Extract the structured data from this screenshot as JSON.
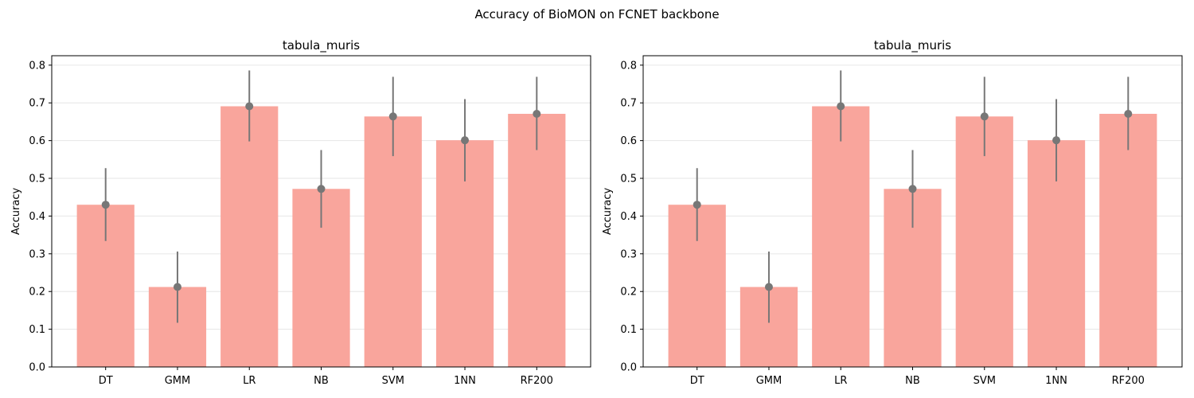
{
  "figure": {
    "suptitle": "Accuracy of BioMON on FCNET backbone"
  },
  "colors": {
    "bar": "#f9a59c",
    "error": "#777777",
    "grid": "#e6e6e6",
    "axis": "#000000"
  },
  "chart_data": [
    {
      "type": "bar",
      "title": "tabula_muris",
      "xlabel": "",
      "ylabel": "Accuracy",
      "categories": [
        "DT",
        "GMM",
        "LR",
        "NB",
        "SVM",
        "1NN",
        "RF200"
      ],
      "values": [
        0.43,
        0.212,
        0.691,
        0.472,
        0.664,
        0.601,
        0.671
      ],
      "error_low": [
        0.334,
        0.117,
        0.598,
        0.369,
        0.559,
        0.492,
        0.575
      ],
      "error_high": [
        0.527,
        0.306,
        0.786,
        0.575,
        0.769,
        0.71,
        0.769
      ],
      "ylim": [
        0,
        0.825
      ],
      "yticks": [
        "0.0",
        "0.1",
        "0.2",
        "0.3",
        "0.4",
        "0.5",
        "0.6",
        "0.7",
        "0.8"
      ],
      "grid": "y"
    },
    {
      "type": "bar",
      "title": "tabula_muris",
      "xlabel": "",
      "ylabel": "Accuracy",
      "categories": [
        "DT",
        "GMM",
        "LR",
        "NB",
        "SVM",
        "1NN",
        "RF200"
      ],
      "values": [
        0.43,
        0.212,
        0.691,
        0.472,
        0.664,
        0.601,
        0.671
      ],
      "error_low": [
        0.334,
        0.117,
        0.598,
        0.369,
        0.559,
        0.492,
        0.575
      ],
      "error_high": [
        0.527,
        0.306,
        0.786,
        0.575,
        0.769,
        0.71,
        0.769
      ],
      "ylim": [
        0,
        0.825
      ],
      "yticks": [
        "0.0",
        "0.1",
        "0.2",
        "0.3",
        "0.4",
        "0.5",
        "0.6",
        "0.7",
        "0.8"
      ],
      "grid": "y"
    }
  ]
}
